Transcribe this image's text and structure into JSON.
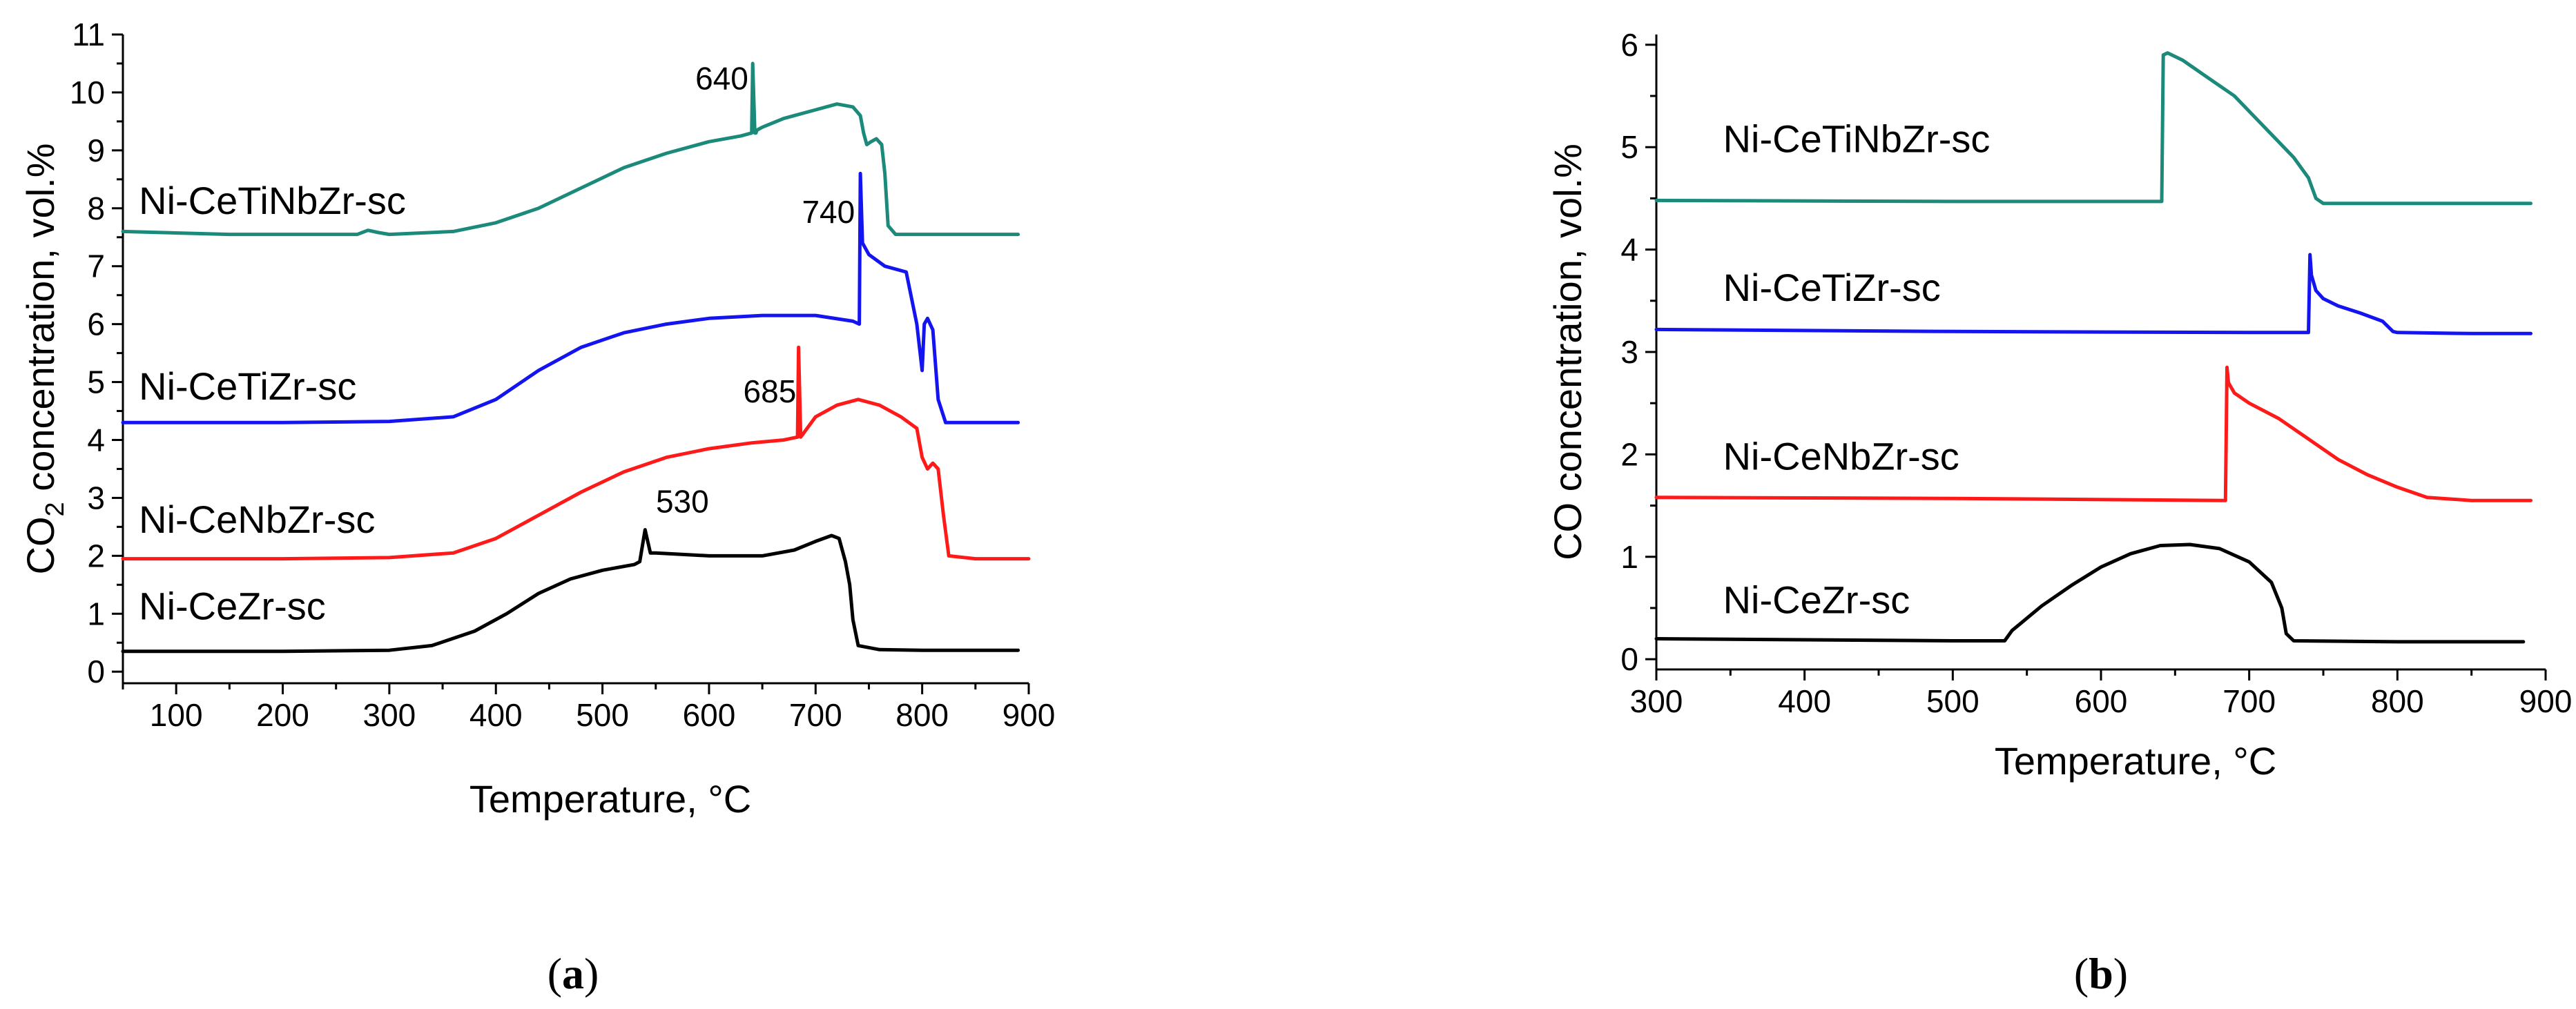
{
  "chart_data": [
    {
      "panel_label": "(a)",
      "panel_letter": "a",
      "type": "line",
      "xlabel": "Temperature, °C",
      "ylabel": "CO2 concentration, vol.%",
      "ylabel_parts": [
        "CO",
        "2",
        " concentration, vol.%"
      ],
      "xlim": [
        50,
        900
      ],
      "ylim": [
        -0.2,
        11
      ],
      "xticks": [
        100,
        200,
        300,
        400,
        500,
        600,
        700,
        800,
        900
      ],
      "yticks": [
        0,
        1,
        2,
        3,
        4,
        5,
        6,
        7,
        8,
        9,
        10,
        11
      ],
      "series": [
        {
          "name": "Ni-CeTiNbZr-sc",
          "color": "#1b8a7a",
          "label_pos": [
            65,
            7.9
          ],
          "x": [
            50,
            150,
            270,
            280,
            290,
            300,
            360,
            400,
            440,
            480,
            520,
            560,
            600,
            630,
            640,
            641,
            643,
            644,
            645,
            650,
            670,
            700,
            720,
            735,
            742,
            745,
            748,
            752,
            757,
            762,
            765,
            768,
            775,
            800,
            850,
            890
          ],
          "y": [
            7.6,
            7.55,
            7.55,
            7.62,
            7.58,
            7.55,
            7.6,
            7.75,
            8.0,
            8.35,
            8.7,
            8.95,
            9.15,
            9.25,
            9.3,
            10.5,
            9.3,
            9.3,
            9.35,
            9.4,
            9.55,
            9.7,
            9.8,
            9.75,
            9.6,
            9.3,
            9.1,
            9.15,
            9.2,
            9.1,
            8.6,
            7.7,
            7.55,
            7.55,
            7.55,
            7.55
          ]
        },
        {
          "name": "Ni-CeTiZr-sc",
          "color": "#1414f0",
          "label_pos": [
            65,
            4.7
          ],
          "x": [
            50,
            200,
            300,
            360,
            400,
            440,
            480,
            520,
            560,
            600,
            650,
            700,
            735,
            741,
            742,
            744,
            750,
            765,
            785,
            795,
            800,
            802,
            805,
            810,
            815,
            822,
            850,
            890
          ],
          "y": [
            4.3,
            4.3,
            4.32,
            4.4,
            4.7,
            5.2,
            5.6,
            5.85,
            6.0,
            6.1,
            6.15,
            6.15,
            6.05,
            6.0,
            8.6,
            7.4,
            7.2,
            7.0,
            6.9,
            6.0,
            5.2,
            6.0,
            6.1,
            5.9,
            4.7,
            4.3,
            4.3,
            4.3
          ]
        },
        {
          "name": "Ni-CeNbZr-sc",
          "color": "#ff1a1a",
          "label_pos": [
            65,
            2.4
          ],
          "x": [
            50,
            200,
            300,
            360,
            400,
            440,
            480,
            520,
            560,
            600,
            640,
            670,
            683,
            684,
            686,
            688,
            700,
            720,
            740,
            760,
            780,
            795,
            800,
            805,
            810,
            815,
            820,
            825,
            850,
            900
          ],
          "y": [
            1.95,
            1.95,
            1.97,
            2.05,
            2.3,
            2.7,
            3.1,
            3.45,
            3.7,
            3.85,
            3.95,
            4.0,
            4.05,
            5.6,
            4.05,
            4.1,
            4.4,
            4.6,
            4.7,
            4.6,
            4.4,
            4.2,
            3.7,
            3.5,
            3.6,
            3.5,
            2.7,
            2.0,
            1.95,
            1.95
          ]
        },
        {
          "name": "Ni-CeZr-sc",
          "color": "#000000",
          "label_pos": [
            65,
            0.9
          ],
          "x": [
            50,
            200,
            300,
            340,
            380,
            410,
            440,
            470,
            500,
            530,
            535,
            540,
            545,
            550,
            600,
            650,
            680,
            700,
            715,
            722,
            728,
            732,
            735,
            740,
            760,
            800,
            890
          ],
          "y": [
            0.35,
            0.35,
            0.37,
            0.45,
            0.7,
            1.0,
            1.35,
            1.6,
            1.75,
            1.85,
            1.9,
            2.45,
            2.05,
            2.05,
            2.0,
            2.0,
            2.1,
            2.25,
            2.35,
            2.3,
            1.9,
            1.5,
            0.9,
            0.45,
            0.38,
            0.37,
            0.37
          ]
        }
      ],
      "annotations": [
        {
          "text": "640",
          "x": 612,
          "y": 10.05
        },
        {
          "text": "740",
          "x": 712,
          "y": 7.75
        },
        {
          "text": "685",
          "x": 657,
          "y": 4.65
        },
        {
          "text": "530",
          "x": 575,
          "y": 2.75
        }
      ]
    },
    {
      "panel_label": "(b)",
      "panel_letter": "b",
      "type": "line",
      "xlabel": "Temperature, °C",
      "ylabel": "CO concentration, vol.%",
      "xlim": [
        300,
        900
      ],
      "ylim": [
        -0.1,
        6.1
      ],
      "xticks": [
        300,
        400,
        500,
        600,
        700,
        800,
        900
      ],
      "yticks": [
        0,
        1,
        2,
        3,
        4,
        5,
        6
      ],
      "series": [
        {
          "name": "Ni-CeTiNbZr-sc",
          "color": "#1b8a7a",
          "label_pos": [
            345,
            4.95
          ],
          "x": [
            300,
            500,
            600,
            641,
            642,
            645,
            655,
            670,
            690,
            710,
            730,
            740,
            745,
            750,
            800,
            890
          ],
          "y": [
            4.48,
            4.47,
            4.47,
            4.47,
            5.9,
            5.92,
            5.85,
            5.7,
            5.5,
            5.2,
            4.9,
            4.7,
            4.5,
            4.45,
            4.45,
            4.45
          ]
        },
        {
          "name": "Ni-CeTiZr-sc",
          "color": "#1414f0",
          "label_pos": [
            345,
            3.5
          ],
          "x": [
            300,
            500,
            700,
            740,
            741,
            742,
            745,
            750,
            760,
            775,
            790,
            797,
            800,
            850,
            890
          ],
          "y": [
            3.22,
            3.2,
            3.19,
            3.19,
            3.95,
            3.75,
            3.6,
            3.52,
            3.45,
            3.38,
            3.3,
            3.2,
            3.19,
            3.18,
            3.18
          ]
        },
        {
          "name": "Ni-CeNbZr-sc",
          "color": "#ff1a1a",
          "label_pos": [
            345,
            1.85
          ],
          "x": [
            300,
            500,
            684,
            685,
            686,
            690,
            700,
            720,
            740,
            760,
            780,
            800,
            820,
            850,
            890
          ],
          "y": [
            1.58,
            1.57,
            1.55,
            2.85,
            2.7,
            2.6,
            2.5,
            2.35,
            2.15,
            1.95,
            1.8,
            1.68,
            1.58,
            1.55,
            1.55
          ]
        },
        {
          "name": "Ni-CeZr-sc",
          "color": "#000000",
          "label_pos": [
            345,
            0.45
          ],
          "x": [
            300,
            500,
            535,
            540,
            560,
            580,
            600,
            620,
            640,
            660,
            680,
            700,
            715,
            722,
            725,
            730,
            800,
            885
          ],
          "y": [
            0.2,
            0.18,
            0.18,
            0.28,
            0.52,
            0.72,
            0.9,
            1.03,
            1.11,
            1.12,
            1.08,
            0.95,
            0.75,
            0.5,
            0.25,
            0.18,
            0.17,
            0.17
          ]
        }
      ],
      "annotations": []
    }
  ]
}
